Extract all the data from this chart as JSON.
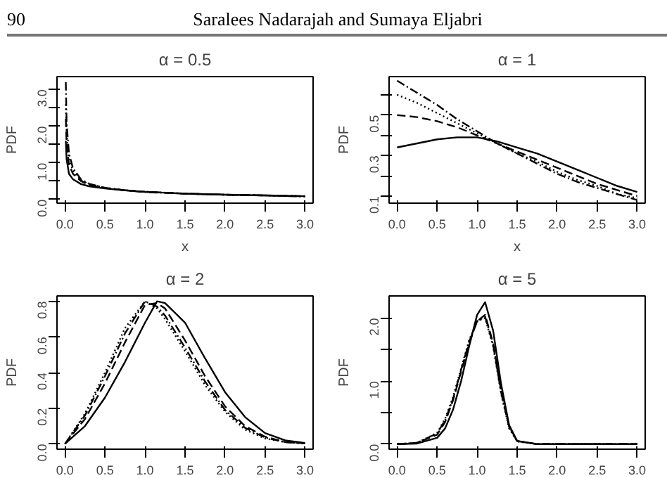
{
  "chart_data": [
    {
      "type": "line",
      "title": "α = 0.5",
      "xlabel": "x",
      "ylabel": "PDF",
      "annotations": [
        "90",
        "Saralees Nadarajah and Sumaya Eljabri"
      ],
      "x": [
        0.01,
        0.02,
        0.05,
        0.1,
        0.2,
        0.3,
        0.5,
        0.75,
        1,
        1.5,
        2,
        2.5,
        3
      ],
      "xlim": [
        -0.1,
        3.1
      ],
      "xticks": [
        {
          "value": 0,
          "label": "0.0"
        },
        0.5,
        {
          "value": 1,
          "label": "1.0"
        },
        1.5,
        {
          "value": 2,
          "label": "2.0"
        },
        2.5,
        {
          "value": 3,
          "label": "3.0"
        }
      ],
      "ylim": [
        -0.1,
        3.35
      ],
      "yticks": [
        {
          "value": 0,
          "label": "0.0"
        },
        {
          "value": 0.5,
          "label": null
        },
        {
          "value": 1,
          "label": "1.0"
        },
        {
          "value": 1.5,
          "label": null
        },
        {
          "value": 2,
          "label": "2.0"
        },
        {
          "value": 2.5,
          "label": null
        },
        {
          "value": 3,
          "label": "3.0"
        }
      ],
      "grid": false,
      "marker": "none",
      "series": [
        {
          "color": "#000000",
          "line_style": "solid",
          "values": [
            1.6,
            1.1,
            0.7,
            0.55,
            0.42,
            0.36,
            0.3,
            0.25,
            0.21,
            0.16,
            0.13,
            0.11,
            0.09
          ]
        },
        {
          "color": "#000000",
          "line_style": "dashed",
          "values": [
            2.2,
            1.5,
            0.95,
            0.7,
            0.5,
            0.4,
            0.31,
            0.25,
            0.21,
            0.16,
            0.13,
            0.11,
            0.09
          ]
        },
        {
          "color": "#000000",
          "line_style": "dotted",
          "values": [
            2.6,
            1.8,
            1.1,
            0.78,
            0.52,
            0.42,
            0.32,
            0.25,
            0.21,
            0.16,
            0.13,
            0.11,
            0.09
          ]
        },
        {
          "color": "#000000",
          "line_style": "dashdot",
          "values": [
            3.2,
            2.1,
            1.25,
            0.85,
            0.55,
            0.43,
            0.32,
            0.25,
            0.2,
            0.16,
            0.13,
            0.11,
            0.08
          ]
        }
      ]
    },
    {
      "type": "line",
      "title": "α = 1",
      "xlabel": "x",
      "ylabel": "PDF",
      "x": [
        0,
        0.25,
        0.5,
        0.75,
        1,
        1.25,
        1.5,
        1.75,
        2,
        2.25,
        2.5,
        2.75,
        3
      ],
      "xlim": [
        -0.1,
        3.1
      ],
      "xticks": [
        {
          "value": 0,
          "label": "0.0"
        },
        0.5,
        {
          "value": 1,
          "label": "1.0"
        },
        1.5,
        {
          "value": 2,
          "label": "2.0"
        },
        2.5,
        {
          "value": 3,
          "label": "3.0"
        }
      ],
      "ylim": [
        0.065,
        0.69
      ],
      "yticks": [
        0.1,
        {
          "value": 0.2,
          "label": null
        },
        0.3,
        {
          "value": 0.4,
          "label": null
        },
        0.5,
        {
          "value": 0.6,
          "label": null
        }
      ],
      "grid": false,
      "marker": "none",
      "series": [
        {
          "color": "#000000",
          "line_style": "solid",
          "values": [
            0.34,
            0.36,
            0.38,
            0.39,
            0.39,
            0.37,
            0.34,
            0.31,
            0.27,
            0.23,
            0.19,
            0.15,
            0.12
          ]
        },
        {
          "color": "#000000",
          "line_style": "dashed",
          "values": [
            0.5,
            0.49,
            0.47,
            0.44,
            0.4,
            0.36,
            0.32,
            0.28,
            0.24,
            0.2,
            0.16,
            0.13,
            0.1
          ]
        },
        {
          "color": "#000000",
          "line_style": "dotted",
          "values": [
            0.6,
            0.56,
            0.51,
            0.46,
            0.41,
            0.36,
            0.31,
            0.27,
            0.22,
            0.18,
            0.15,
            0.11,
            0.09
          ]
        },
        {
          "color": "#000000",
          "line_style": "dashdot",
          "values": [
            0.67,
            0.61,
            0.55,
            0.48,
            0.42,
            0.36,
            0.31,
            0.26,
            0.21,
            0.17,
            0.14,
            0.11,
            0.08
          ]
        }
      ]
    },
    {
      "type": "line",
      "title": "α = 2",
      "ylabel": "PDF",
      "x": [
        0,
        0.25,
        0.5,
        0.75,
        1,
        1.15,
        1.25,
        1.5,
        1.75,
        2,
        2.25,
        2.5,
        2.75,
        3
      ],
      "xlim": [
        -0.1,
        3.1
      ],
      "xticks": [
        {
          "value": 0,
          "label": "0.0"
        },
        0.5,
        {
          "value": 1,
          "label": "1.0"
        },
        1.5,
        {
          "value": 2,
          "label": "2.0"
        },
        2.5,
        {
          "value": 3,
          "label": "3.0"
        }
      ],
      "ylim": [
        -0.03,
        0.83
      ],
      "yticks": [
        {
          "value": 0,
          "label": "0.0"
        },
        0.2,
        0.4,
        0.6,
        0.8
      ],
      "grid": false,
      "marker": "none",
      "series": [
        {
          "color": "#000000",
          "line_style": "solid",
          "values": [
            0,
            0.1,
            0.26,
            0.46,
            0.68,
            0.8,
            0.79,
            0.68,
            0.48,
            0.29,
            0.15,
            0.06,
            0.02,
            0.005
          ]
        },
        {
          "color": "#000000",
          "line_style": "dashed",
          "values": [
            0,
            0.14,
            0.34,
            0.57,
            0.78,
            0.79,
            0.76,
            0.58,
            0.38,
            0.21,
            0.1,
            0.04,
            0.01,
            0.003
          ]
        },
        {
          "color": "#000000",
          "line_style": "dotted",
          "values": [
            0,
            0.17,
            0.4,
            0.65,
            0.8,
            0.76,
            0.7,
            0.52,
            0.33,
            0.18,
            0.08,
            0.03,
            0.01,
            0.002
          ]
        },
        {
          "color": "#000000",
          "line_style": "dashdot",
          "values": [
            0,
            0.16,
            0.38,
            0.62,
            0.8,
            0.77,
            0.72,
            0.54,
            0.35,
            0.19,
            0.09,
            0.035,
            0.01,
            0.002
          ]
        }
      ]
    },
    {
      "type": "line",
      "title": "α = 5",
      "ylabel": "PDF",
      "x": [
        0,
        0.25,
        0.5,
        0.6,
        0.7,
        0.8,
        0.9,
        1,
        1.1,
        1.2,
        1.3,
        1.4,
        1.5,
        1.75,
        2,
        3
      ],
      "xlim": [
        -0.1,
        3.1
      ],
      "xticks": [
        {
          "value": 0,
          "label": "0.0"
        },
        0.5,
        {
          "value": 1,
          "label": "1.0"
        },
        1.5,
        {
          "value": 2,
          "label": "2.0"
        },
        2.5,
        {
          "value": 3,
          "label": "3.0"
        }
      ],
      "ylim": [
        -0.08,
        2.35
      ],
      "yticks": [
        {
          "value": 0,
          "label": "0.0"
        },
        {
          "value": 0.5,
          "label": null
        },
        {
          "value": 1,
          "label": "1.0"
        },
        {
          "value": 1.5,
          "label": null
        },
        {
          "value": 2,
          "label": "2.0"
        }
      ],
      "grid": false,
      "marker": "none",
      "series": [
        {
          "color": "#000000",
          "line_style": "solid",
          "values": [
            0,
            0.01,
            0.1,
            0.25,
            0.55,
            1.0,
            1.55,
            2.05,
            2.25,
            1.8,
            0.95,
            0.3,
            0.05,
            0,
            0,
            0
          ]
        },
        {
          "color": "#000000",
          "line_style": "dashed",
          "values": [
            0,
            0.02,
            0.15,
            0.35,
            0.7,
            1.15,
            1.6,
            1.95,
            2.05,
            1.6,
            0.85,
            0.28,
            0.05,
            0,
            0,
            0
          ]
        },
        {
          "color": "#000000",
          "line_style": "dotted",
          "values": [
            0,
            0.02,
            0.18,
            0.4,
            0.75,
            1.2,
            1.65,
            1.95,
            2.0,
            1.55,
            0.8,
            0.25,
            0.04,
            0,
            0,
            0
          ]
        },
        {
          "color": "#000000",
          "line_style": "dashdot",
          "values": [
            0,
            0.02,
            0.17,
            0.38,
            0.72,
            1.18,
            1.62,
            1.95,
            2.02,
            1.58,
            0.82,
            0.27,
            0.05,
            0,
            0,
            0
          ]
        }
      ]
    }
  ]
}
